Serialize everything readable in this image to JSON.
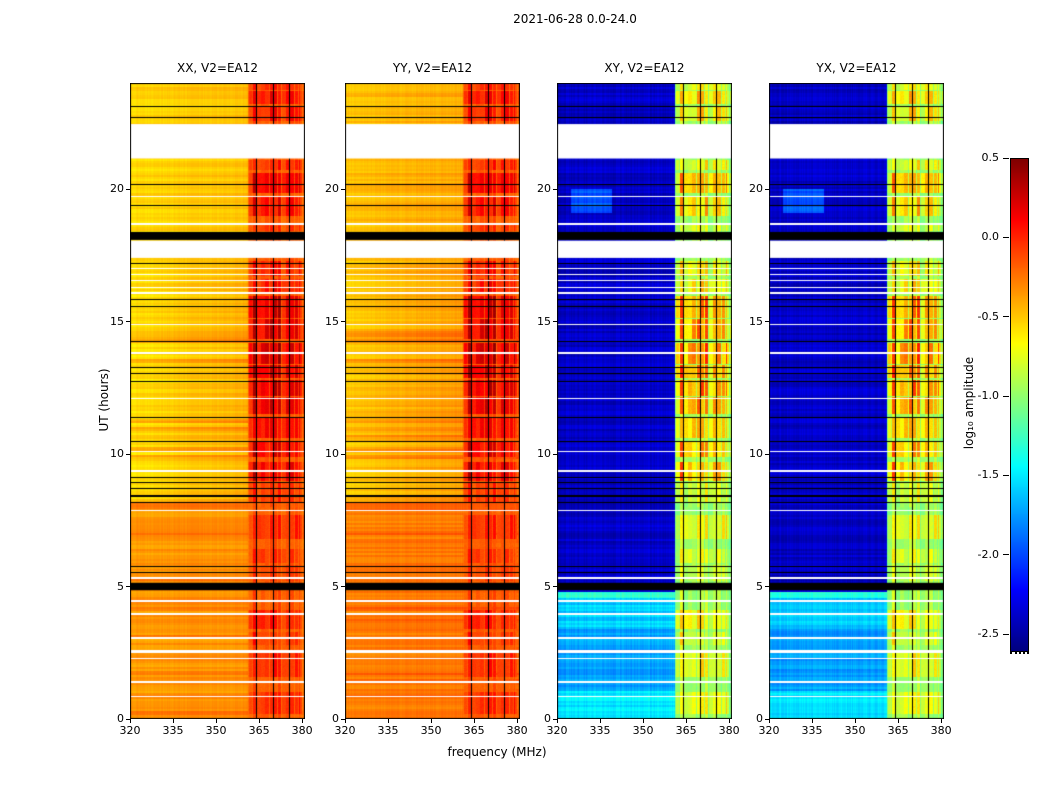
{
  "chart_data": {
    "type": "heatmap",
    "title": "2021-06-28 0.0-24.0",
    "xlabel": "frequency (MHz)",
    "ylabel": "UT (hours)",
    "x_range": [
      320,
      381
    ],
    "y_range": [
      0,
      24
    ],
    "x_ticks": [
      320,
      335,
      350,
      365,
      380
    ],
    "y_ticks": [
      0,
      5,
      10,
      15,
      20
    ],
    "panels": [
      {
        "id": "xx",
        "title": "XX, V2=EA12",
        "kind": "auto"
      },
      {
        "id": "yy",
        "title": "YY, V2=EA12",
        "kind": "auto"
      },
      {
        "id": "xy",
        "title": "XY, V2=EA12",
        "kind": "cross"
      },
      {
        "id": "yx",
        "title": "YX, V2=EA12",
        "kind": "cross"
      }
    ],
    "colorbar": {
      "label": "log₁₀ amplitude",
      "tick_values": [
        0.5,
        0.0,
        -0.5,
        -1.0,
        -1.5,
        -2.0,
        -2.5
      ],
      "vmin": -2.6,
      "vmax": 0.5,
      "colormap": "jet"
    },
    "rfi_band_mhz": [
      361.2,
      381
    ],
    "rfi_column_width_mhz": 1.45,
    "rfi_baseline_level": 0.32,
    "rfi_blocks": [
      [
        0.2,
        1.0,
        0.55
      ],
      [
        1.6,
        2.5,
        0.6
      ],
      [
        2.8,
        3.3,
        0.5
      ],
      [
        3.4,
        4.1,
        0.65
      ],
      [
        5.2,
        5.8,
        0.45
      ],
      [
        5.9,
        6.4,
        0.5
      ],
      [
        6.8,
        7.7,
        0.6
      ],
      [
        8.2,
        8.9,
        0.5
      ],
      [
        9.0,
        9.7,
        0.85
      ],
      [
        9.9,
        10.45,
        0.85
      ],
      [
        10.6,
        11.35,
        0.8
      ],
      [
        11.5,
        12.15,
        0.9
      ],
      [
        12.2,
        12.8,
        1.0
      ],
      [
        12.85,
        13.35,
        0.95
      ],
      [
        13.4,
        14.2,
        1.0
      ],
      [
        14.35,
        15.1,
        0.95
      ],
      [
        15.15,
        15.95,
        0.9
      ],
      [
        16.05,
        16.6,
        0.7
      ],
      [
        16.7,
        17.3,
        0.6
      ],
      [
        18.4,
        18.7,
        0.5
      ],
      [
        19.0,
        19.75,
        0.75
      ],
      [
        19.85,
        20.6,
        0.8
      ],
      [
        20.7,
        21.1,
        0.6
      ],
      [
        22.55,
        23.1,
        0.7
      ],
      [
        23.2,
        23.7,
        0.75
      ],
      [
        23.75,
        24.0,
        0.6
      ]
    ],
    "flagged_channels_mhz": [
      364.15,
      370.0,
      375.7
    ],
    "cross_bright_channels_mhz": [
      362.3,
      377.9
    ],
    "time_gaps": [
      [
        21.15,
        22.45
      ],
      [
        17.4,
        18.05
      ]
    ],
    "white_lines": [
      [
        19.75,
        1
      ],
      [
        18.7,
        2
      ],
      [
        17.0,
        1
      ],
      [
        16.8,
        1
      ],
      [
        16.55,
        1
      ],
      [
        16.3,
        1
      ],
      [
        16.1,
        2
      ],
      [
        14.9,
        1
      ],
      [
        13.85,
        2
      ],
      [
        12.1,
        1
      ],
      [
        10.1,
        1
      ],
      [
        9.4,
        2
      ],
      [
        7.9,
        1
      ],
      [
        5.35,
        2
      ],
      [
        4.5,
        2
      ],
      [
        4.0,
        2
      ],
      [
        3.1,
        2
      ],
      [
        2.6,
        3
      ],
      [
        2.3,
        1
      ],
      [
        1.45,
        2
      ],
      [
        0.85,
        1
      ]
    ],
    "black_bands": [
      [
        18.08,
        18.38
      ],
      [
        4.86,
        5.14
      ]
    ],
    "black_lines": [
      [
        23.15,
        1
      ],
      [
        22.7,
        1
      ],
      [
        20.2,
        1
      ],
      [
        19.4,
        1
      ],
      [
        17.2,
        1
      ],
      [
        15.85,
        1
      ],
      [
        15.6,
        1
      ],
      [
        14.25,
        1
      ],
      [
        13.3,
        1
      ],
      [
        13.05,
        1
      ],
      [
        12.75,
        1
      ],
      [
        11.4,
        1
      ],
      [
        10.5,
        1
      ],
      [
        9.15,
        1
      ],
      [
        8.95,
        1
      ],
      [
        8.7,
        1
      ],
      [
        8.45,
        2
      ],
      [
        8.2,
        1
      ],
      [
        5.77,
        1
      ],
      [
        5.55,
        1
      ]
    ],
    "cross_bottom_regions": [
      [
        0.0,
        1.05,
        -1.5
      ],
      [
        1.05,
        3.4,
        -1.72
      ],
      [
        3.4,
        4.55,
        -1.58
      ],
      [
        4.55,
        4.78,
        -1.33
      ]
    ],
    "cross_dark_level": -2.38,
    "cross_blob": {
      "t0": 19.1,
      "t1": 20.0,
      "f0": 325,
      "f1": 339,
      "level": -1.95
    }
  }
}
